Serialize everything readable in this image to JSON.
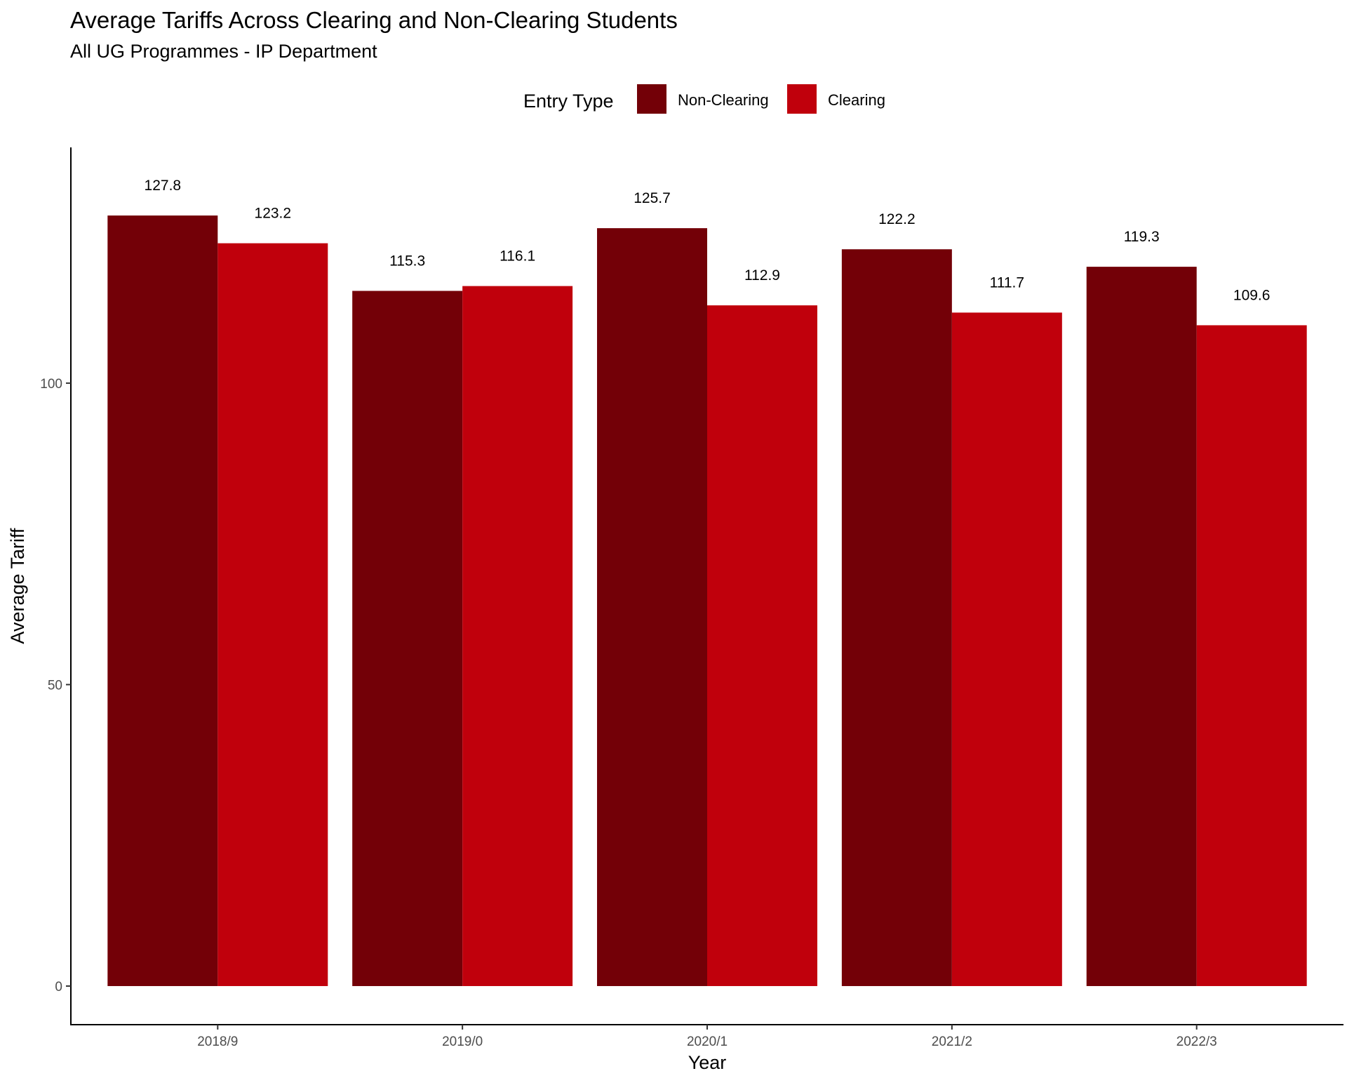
{
  "chart_data": {
    "type": "bar",
    "title": "Average Tariffs Across Clearing and Non-Clearing Students",
    "subtitle": "All UG Programmes - IP Department",
    "xlabel": "Year",
    "ylabel": "Average Tariff",
    "categories": [
      "2018/9",
      "2019/0",
      "2020/1",
      "2021/2",
      "2022/3"
    ],
    "series": [
      {
        "name": "Non-Clearing",
        "color": "#730007",
        "values": [
          127.8,
          115.3,
          125.7,
          122.2,
          119.3
        ],
        "labels": [
          "127.8",
          "115.3",
          "125.7",
          "122.2",
          "119.3"
        ]
      },
      {
        "name": "Clearing",
        "color": "#c0000c",
        "values": [
          123.2,
          116.1,
          112.9,
          111.7,
          109.6
        ],
        "labels": [
          "123.2",
          "116.1",
          "112.9",
          "111.7",
          "109.6"
        ]
      }
    ],
    "ylim": [
      -6.4,
      139.1
    ],
    "yticks": [
      0,
      50,
      100
    ],
    "ytick_labels": [
      "0",
      "50",
      "100"
    ],
    "legend": {
      "title": "Entry Type",
      "position": "top"
    },
    "grid": false
  }
}
